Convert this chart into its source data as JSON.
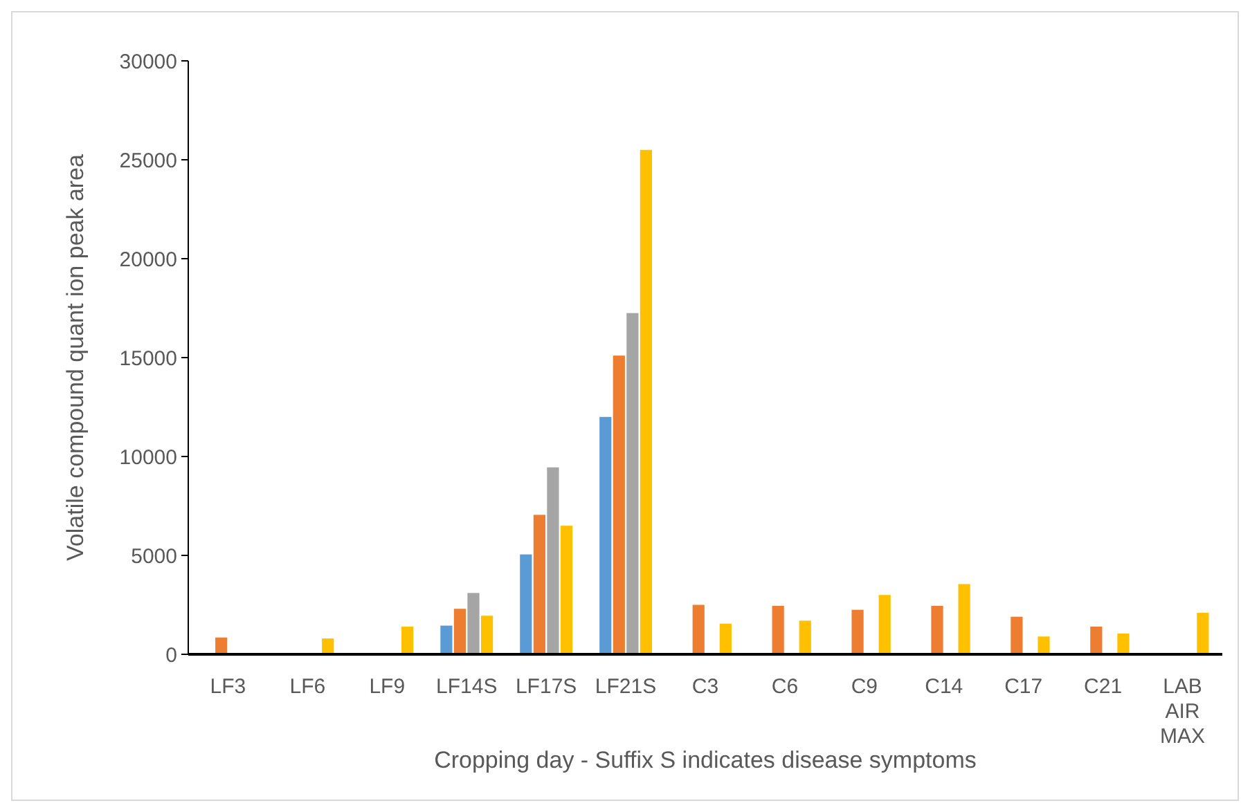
{
  "chart_data": {
    "type": "bar",
    "xlabel": "Cropping day - Suffix S indicates disease symptoms",
    "ylabel": "Volatile compound quant ion peak area",
    "categories": [
      "LF3",
      "LF6",
      "LF9",
      "LF14S",
      "LF17S",
      "LF21S",
      "C3",
      "C6",
      "C9",
      "C14",
      "C17",
      "C21",
      "LAB AIR MAX"
    ],
    "series": [
      {
        "color": "#5b9bd5",
        "values": [
          null,
          null,
          null,
          1450,
          5050,
          12000,
          null,
          null,
          null,
          null,
          null,
          null,
          null
        ]
      },
      {
        "color": "#ed7d31",
        "values": [
          850,
          null,
          null,
          2300,
          7050,
          15100,
          2500,
          2450,
          2250,
          2450,
          1900,
          1400,
          null
        ]
      },
      {
        "color": "#a5a5a5",
        "values": [
          null,
          null,
          null,
          3100,
          9450,
          17250,
          null,
          null,
          null,
          null,
          null,
          null,
          null
        ]
      },
      {
        "color": "#ffc000",
        "values": [
          null,
          800,
          1400,
          1950,
          6500,
          25500,
          1550,
          1700,
          3000,
          3550,
          900,
          1050,
          2100
        ]
      }
    ],
    "ylim": [
      0,
      30000
    ],
    "yticks": [
      0,
      5000,
      10000,
      15000,
      20000,
      25000,
      30000
    ]
  }
}
